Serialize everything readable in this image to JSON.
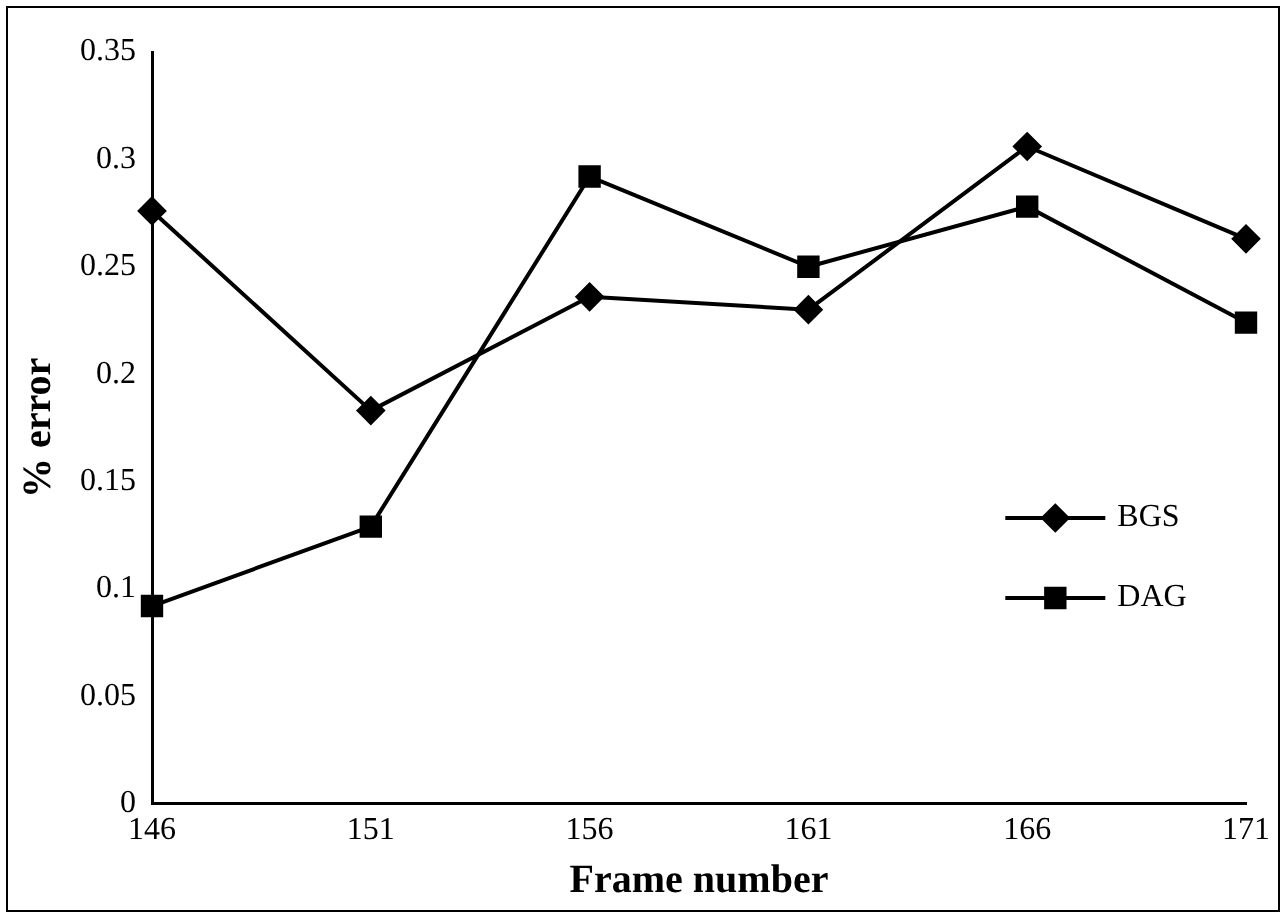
{
  "chart_data": {
    "type": "line",
    "xlabel": "Frame number",
    "ylabel": "% error",
    "categories": [
      "146",
      "151",
      "156",
      "161",
      "166",
      "171"
    ],
    "series": [
      {
        "name": "BGS",
        "color": "#000000",
        "marker": "diamond",
        "values": [
          0.276,
          0.183,
          0.236,
          0.23,
          0.306,
          0.263
        ]
      },
      {
        "name": "DAG",
        "color": "#000000",
        "marker": "square",
        "values": [
          0.092,
          0.129,
          0.292,
          0.25,
          0.278,
          0.224
        ]
      }
    ],
    "ylim": [
      0,
      0.35
    ],
    "yticks": [
      0,
      0.05,
      0.1,
      0.15,
      0.2,
      0.25,
      0.3,
      0.35
    ],
    "grid": false,
    "legend": "right",
    "line_style": "solid"
  }
}
